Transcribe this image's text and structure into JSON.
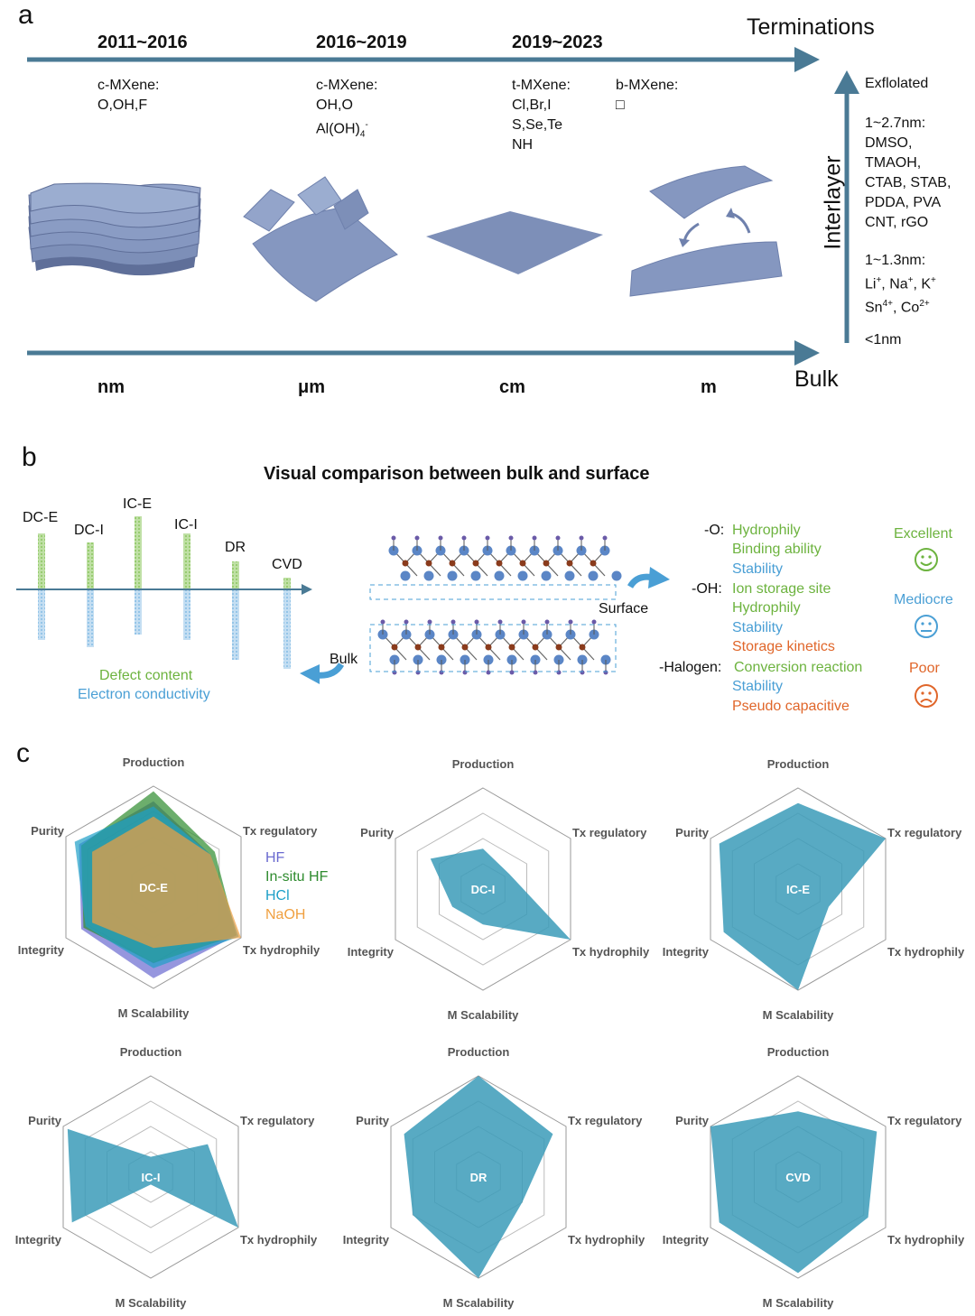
{
  "panel_a": {
    "letter": "a",
    "periods": [
      "2011~2016",
      "2016~2019",
      "2019~2023"
    ],
    "terminations_title": "Terminations",
    "bulk_title": "Bulk",
    "interlayer_title": "Interlayer",
    "term_groups": [
      {
        "title": "c-MXene:",
        "lines": [
          "O,OH,F"
        ]
      },
      {
        "title": "c-MXene:",
        "lines": [
          "OH,O",
          "Al(OH)4-"
        ]
      },
      {
        "title": "t-MXene:",
        "lines": [
          "Cl,Br,I",
          "S,Se,Te",
          "NH"
        ]
      },
      {
        "title": "b-MXene:",
        "lines": [
          "□"
        ]
      }
    ],
    "scales": [
      "nm",
      "μm",
      "cm",
      "m"
    ],
    "interlayer_items": [
      "Exflolated",
      "1~2.7nm:",
      "DMSO,",
      "TMAOH,",
      "CTAB, STAB,",
      "PDDA, PVA",
      "CNT, rGO",
      "1~1.3nm:",
      "Li+, Na+, K+",
      "Sn4+, Co2+",
      "<1nm"
    ],
    "colors": {
      "axis": "#4a7a95",
      "sheet": "#7d8fb8",
      "sheet_dark": "#5f6f99"
    }
  },
  "panel_b": {
    "letter": "b",
    "title": "Visual comparison between bulk and surface",
    "methods": [
      "DC-E",
      "DC-I",
      "IC-E",
      "IC-I",
      "DR",
      "CVD"
    ],
    "defect_label": "Defect content",
    "conductivity_label": "Electron conductivity",
    "surface_label": "Surface",
    "bulk_label": "Bulk",
    "groups": [
      {
        "name": "-O:",
        "props": [
          {
            "text": "Hydrophily",
            "quality": "excellent"
          },
          {
            "text": "Binding ability",
            "quality": "excellent"
          },
          {
            "text": "Stability",
            "quality": "mediocre"
          }
        ]
      },
      {
        "name": "-OH:",
        "props": [
          {
            "text": "Ion storage site",
            "quality": "excellent"
          },
          {
            "text": "Hydrophily",
            "quality": "excellent"
          },
          {
            "text": "Stability",
            "quality": "mediocre"
          },
          {
            "text": "Storage kinetics",
            "quality": "poor"
          }
        ]
      },
      {
        "name": "-Halogen:",
        "props": [
          {
            "text": "Conversion reaction",
            "quality": "excellent"
          },
          {
            "text": "Stability",
            "quality": "mediocre"
          },
          {
            "text": "Pseudo capacitive",
            "quality": "poor"
          }
        ]
      }
    ],
    "legend": [
      {
        "label": "Excellent",
        "face": "smile",
        "color": "#6db33f"
      },
      {
        "label": "Mediocre",
        "face": "neutral",
        "color": "#4a9fd5"
      },
      {
        "label": "Poor",
        "face": "frown",
        "color": "#e0662a"
      }
    ],
    "colors": {
      "green": "#6db33f",
      "blue": "#4a9fd5",
      "orange": "#e0662a",
      "atom_blue": "#5b86c6",
      "atom_brown": "#8a3b1c"
    }
  },
  "panel_c": {
    "letter": "c",
    "axes": [
      "Production",
      "Tx regulatory",
      "Tx hydrophily",
      "M Scalability",
      "Integrity",
      "Purity"
    ],
    "legend": [
      {
        "label": "HF",
        "color": "#6a6ad0"
      },
      {
        "label": "In-situ HF",
        "color": "#2e8b2e"
      },
      {
        "label": "HCl",
        "color": "#1ea0c8"
      },
      {
        "label": "NaOH",
        "color": "#f0a040"
      }
    ],
    "fill_color": "#3b9bb8"
  },
  "chart_data": [
    {
      "type": "radar",
      "title": "DC-E",
      "axes": [
        "Production",
        "Tx regulatory",
        "Tx hydrophily",
        "M Scalability",
        "Integrity",
        "Purity"
      ],
      "range": [
        0,
        4
      ],
      "series": [
        {
          "name": "HF",
          "values": [
            3.4,
            2.6,
            3.8,
            3.6,
            3.3,
            3.4
          ]
        },
        {
          "name": "In-situ HF",
          "values": [
            3.8,
            2.8,
            3.8,
            3.0,
            3.2,
            3.3
          ]
        },
        {
          "name": "HCl",
          "values": [
            3.2,
            2.6,
            3.9,
            3.2,
            3.1,
            3.6
          ]
        },
        {
          "name": "NaOH",
          "values": [
            2.8,
            2.6,
            4.0,
            2.4,
            2.8,
            2.8
          ]
        }
      ]
    },
    {
      "type": "radar",
      "title": "DC-I",
      "axes": [
        "Production",
        "Tx regulatory",
        "Tx hydrophily",
        "M Scalability",
        "Integrity",
        "Purity"
      ],
      "range": [
        0,
        4
      ],
      "series": [
        {
          "name": "DC-I",
          "values": [
            1.6,
            1.2,
            4.0,
            1.4,
            1.4,
            2.4
          ]
        }
      ]
    },
    {
      "type": "radar",
      "title": "IC-E",
      "axes": [
        "Production",
        "Tx regulatory",
        "Tx hydrophily",
        "M Scalability",
        "Integrity",
        "Purity"
      ],
      "range": [
        0,
        4
      ],
      "series": [
        {
          "name": "IC-E",
          "values": [
            3.4,
            4.0,
            1.4,
            4.0,
            3.4,
            3.6
          ]
        }
      ]
    },
    {
      "type": "radar",
      "title": "IC-I",
      "axes": [
        "Production",
        "Tx regulatory",
        "Tx hydrophily",
        "M Scalability",
        "Integrity",
        "Purity"
      ],
      "range": [
        0,
        4
      ],
      "series": [
        {
          "name": "IC-I",
          "values": [
            0.8,
            2.6,
            4.0,
            0.3,
            3.6,
            3.8
          ]
        }
      ]
    },
    {
      "type": "radar",
      "title": "DR",
      "axes": [
        "Production",
        "Tx regulatory",
        "Tx hydrophily",
        "M Scalability",
        "Integrity",
        "Purity"
      ],
      "range": [
        0,
        4
      ],
      "series": [
        {
          "name": "DR",
          "values": [
            4.0,
            3.4,
            2.0,
            4.0,
            3.0,
            3.4
          ]
        }
      ]
    },
    {
      "type": "radar",
      "title": "CVD",
      "axes": [
        "Production",
        "Tx regulatory",
        "Tx hydrophily",
        "M Scalability",
        "Integrity",
        "Purity"
      ],
      "range": [
        0,
        4
      ],
      "series": [
        {
          "name": "CVD",
          "values": [
            2.6,
            3.6,
            3.2,
            3.8,
            3.6,
            4.0
          ]
        }
      ]
    }
  ]
}
